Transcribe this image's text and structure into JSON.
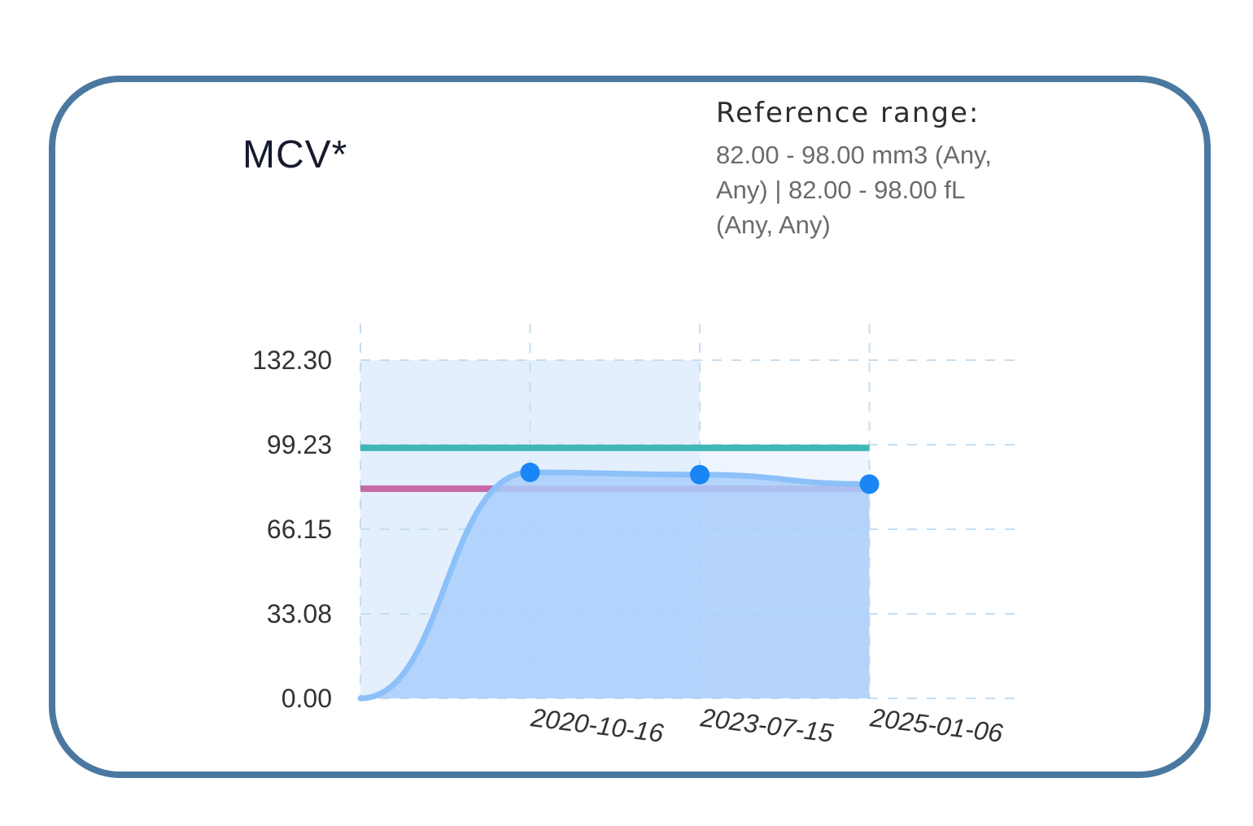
{
  "card": {
    "title": "MCV*",
    "reference_label": "Reference range:",
    "reference_value": "82.00 - 98.00 mm3 (Any, Any) | 82.00 - 98.00 fL (Any, Any)"
  },
  "colors": {
    "border": "#4a78a0",
    "series_point": "#1a86f5",
    "series_line": "#8cc0f8",
    "upper_reference_line": "#3fb7b5",
    "lower_reference_line": "#c56aa6",
    "grid": "#c5ddf2"
  },
  "chart_data": {
    "type": "line",
    "title": "",
    "xlabel": "",
    "ylabel": "",
    "x_ticks": [
      "2020-10-16",
      "2023-07-15",
      "2025-01-06"
    ],
    "y_ticks": [
      "0.00",
      "33.08",
      "66.15",
      "99.23",
      "132.30"
    ],
    "ylim": [
      0,
      132.3
    ],
    "series": [
      {
        "x": [
          "2020-10-16",
          "2023-07-15",
          "2025-01-06"
        ],
        "values": [
          88.4,
          87.5,
          83.8
        ]
      }
    ],
    "reference_lines": [
      {
        "value": 98.0,
        "color": "#3fb7b5"
      },
      {
        "value": 82.0,
        "color": "#c56aa6"
      }
    ],
    "grid": true,
    "legend": "none"
  }
}
